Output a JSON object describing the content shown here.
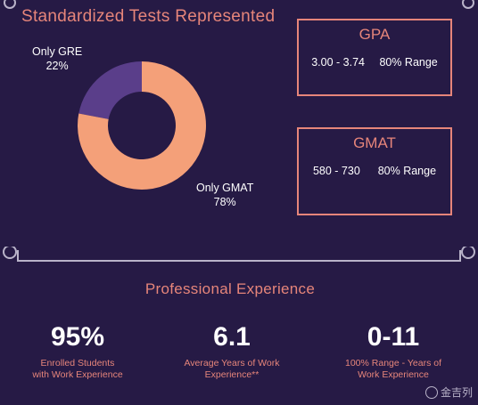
{
  "page_title": "Standardized Tests Represented",
  "colors": {
    "accent": "#e6857a",
    "donut_primary": "#f4a079",
    "donut_secondary": "#5a3e8a",
    "background": "#261a45"
  },
  "chart_data": {
    "type": "pie",
    "style": "donut",
    "categories": [
      "Only GRE",
      "Only GMAT"
    ],
    "values": [
      22,
      78
    ],
    "labels": [
      "22%",
      "78%"
    ]
  },
  "boxes": [
    {
      "title": "GPA",
      "range": "3.00 - 3.74",
      "range_label": "80% Range"
    },
    {
      "title": "GMAT",
      "range": "580 - 730",
      "range_label": "80% Range"
    }
  ],
  "section2": {
    "title": "Professional Experience",
    "metrics": [
      {
        "value": "95%",
        "line1": "Enrolled Students",
        "line2": "with Work Experience"
      },
      {
        "value": "6.1",
        "line1": "Average Years of Work",
        "line2": "Experience**"
      },
      {
        "value": "0-11",
        "line1": "100% Range - Years of",
        "line2": "Work Experience"
      }
    ]
  },
  "watermark": "金吉列"
}
